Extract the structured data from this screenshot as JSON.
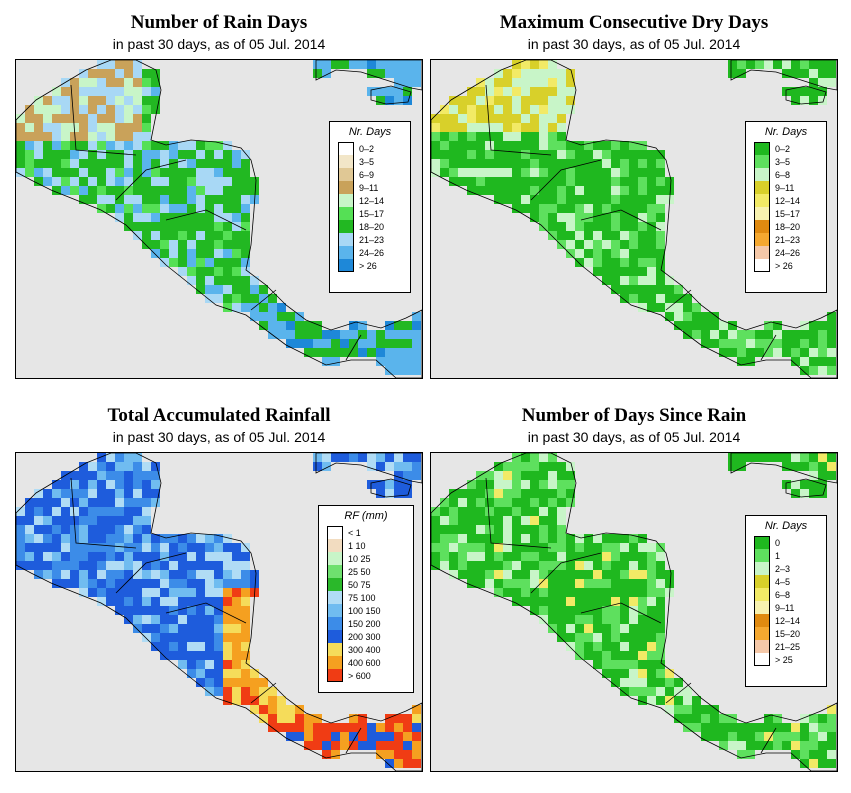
{
  "panels": [
    {
      "id": "rain-days",
      "title": "Number of Rain Days",
      "subtitle": "in past 30 days, as of  05 Jul. 2014",
      "legend": {
        "title": "Nr. Days",
        "items": [
          {
            "label": "0–2",
            "color": "#ffffff"
          },
          {
            "label": "3–5",
            "color": "#f2e6c8"
          },
          {
            "label": "6–9",
            "color": "#e0c895"
          },
          {
            "label": "9–11",
            "color": "#c9a25a"
          },
          {
            "label": "12–14",
            "color": "#c8f5c8"
          },
          {
            "label": "15–17",
            "color": "#55e055"
          },
          {
            "label": "18–20",
            "color": "#22b822"
          },
          {
            "label": "21–23",
            "color": "#a8d8f5"
          },
          {
            "label": "24–26",
            "color": "#5ab4ec"
          },
          {
            "label": "> 26",
            "color": "#1e88d8"
          }
        ]
      }
    },
    {
      "id": "max-dry-days",
      "title": "Maximum Consecutive Dry Days",
      "subtitle": "in past 30 days, as of  05 Jul. 2014",
      "legend": {
        "title": "Nr. Days",
        "items": [
          {
            "label": "0–2",
            "color": "#1fb81f"
          },
          {
            "label": "3–5",
            "color": "#5ee05e"
          },
          {
            "label": "6–8",
            "color": "#c8f5c8"
          },
          {
            "label": "9–11",
            "color": "#d8d02a"
          },
          {
            "label": "12–14",
            "color": "#f2ea66"
          },
          {
            "label": "15–17",
            "color": "#f8f2b0"
          },
          {
            "label": "18–20",
            "color": "#e08a10"
          },
          {
            "label": "21–23",
            "color": "#f5a830"
          },
          {
            "label": "24–26",
            "color": "#f5c8a8"
          },
          {
            "label": "> 26",
            "color": "#ffffff"
          }
        ]
      }
    },
    {
      "id": "total-rainfall",
      "title": "Total Accumulated Rainfall",
      "subtitle": "in past 30 days, as of  05 Jul. 2014",
      "legend": {
        "title": "RF (mm)",
        "items": [
          {
            "label": "< 1",
            "color": "#ffffff"
          },
          {
            "label": "1   10",
            "color": "#f2dcc0"
          },
          {
            "label": "10   25",
            "color": "#c8f5c8"
          },
          {
            "label": "25   50",
            "color": "#6ee06e"
          },
          {
            "label": "50   75",
            "color": "#2ab82a"
          },
          {
            "label": "75   100",
            "color": "#b0dcf5"
          },
          {
            "label": "100   150",
            "color": "#70bcf0"
          },
          {
            "label": "150   200",
            "color": "#3c8ce8"
          },
          {
            "label": "200   300",
            "color": "#1e5cdc"
          },
          {
            "label": "300   400",
            "color": "#f5dc5a"
          },
          {
            "label": "400   600",
            "color": "#f5a020"
          },
          {
            "label": "> 600",
            "color": "#f03c14"
          }
        ]
      }
    },
    {
      "id": "days-since-rain",
      "title": "Number of Days Since Rain",
      "subtitle": "in past 30 days, as of  05 Jul. 2014",
      "legend": {
        "title": "Nr. Days",
        "items": [
          {
            "label": "0",
            "color": "#1fb81f"
          },
          {
            "label": "1",
            "color": "#5ee05e"
          },
          {
            "label": "2–3",
            "color": "#c8f5c8"
          },
          {
            "label": "4–5",
            "color": "#d8d02a"
          },
          {
            "label": "6–8",
            "color": "#f2ea66"
          },
          {
            "label": "9–11",
            "color": "#f8f2b0"
          },
          {
            "label": "12–14",
            "color": "#e08a10"
          },
          {
            "label": "15–20",
            "color": "#f5a830"
          },
          {
            "label": "21–25",
            "color": "#f5c8a8"
          },
          {
            "label": "> 25",
            "color": "#ffffff"
          }
        ]
      }
    }
  ]
}
